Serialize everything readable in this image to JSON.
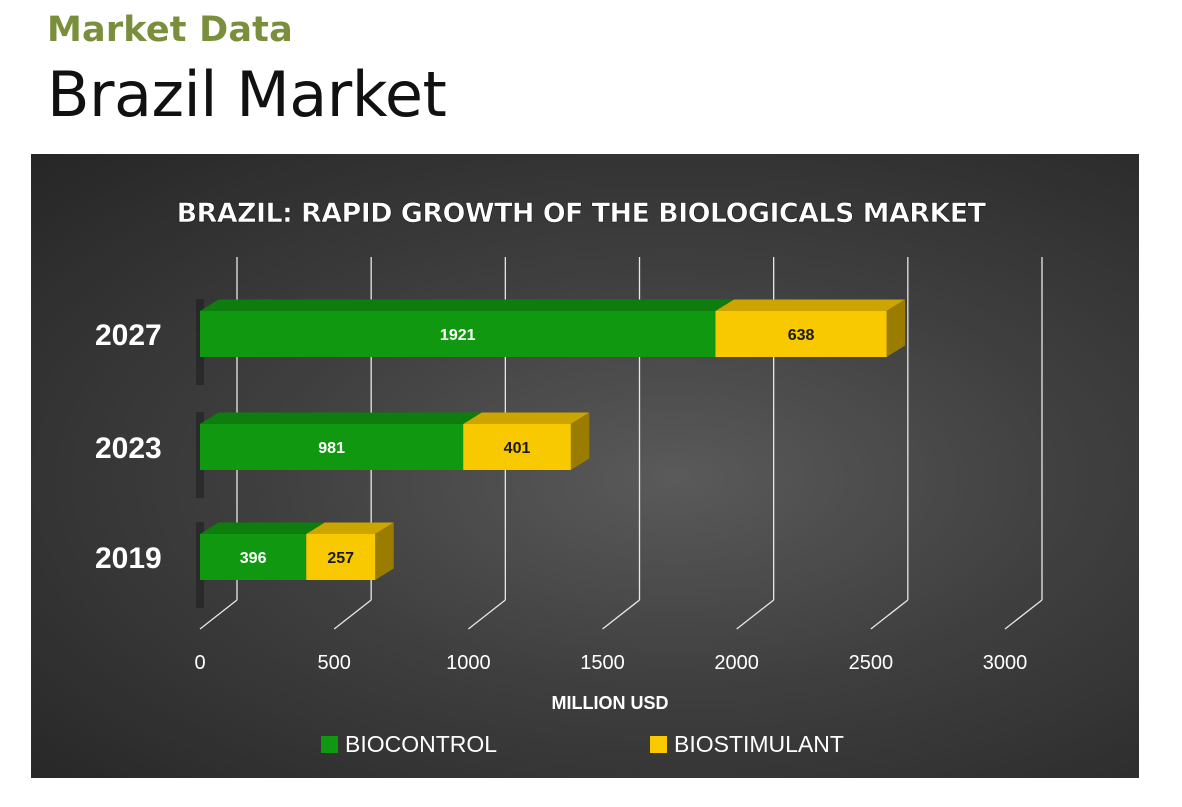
{
  "header": {
    "section_label": "Market Data",
    "page_title": "Brazil Market"
  },
  "colors": {
    "section_label": "#7a8f3c",
    "biocontrol": "#109910",
    "biostimulant": "#f9c900",
    "panel_background": "#3a3a3a"
  },
  "chart_data": {
    "type": "bar",
    "orientation": "horizontal",
    "stacked": true,
    "title": "BRAZIL: RAPID GROWTH OF THE BIOLOGICALS MARKET",
    "xlabel": "MILLION USD",
    "ylabel": "",
    "categories": [
      "2027",
      "2023",
      "2019"
    ],
    "series": [
      {
        "name": "BIOCONTROL",
        "color": "#109910",
        "values": [
          1921,
          981,
          396
        ]
      },
      {
        "name": "BIOSTIMULANT",
        "color": "#f9c900",
        "values": [
          638,
          401,
          257
        ]
      }
    ],
    "xlim": [
      0,
      3000
    ],
    "x_ticks": [
      "0",
      "500",
      "1000",
      "1500",
      "2000",
      "2500",
      "3000"
    ],
    "grid": true,
    "legend_position": "bottom",
    "three_d": true
  }
}
